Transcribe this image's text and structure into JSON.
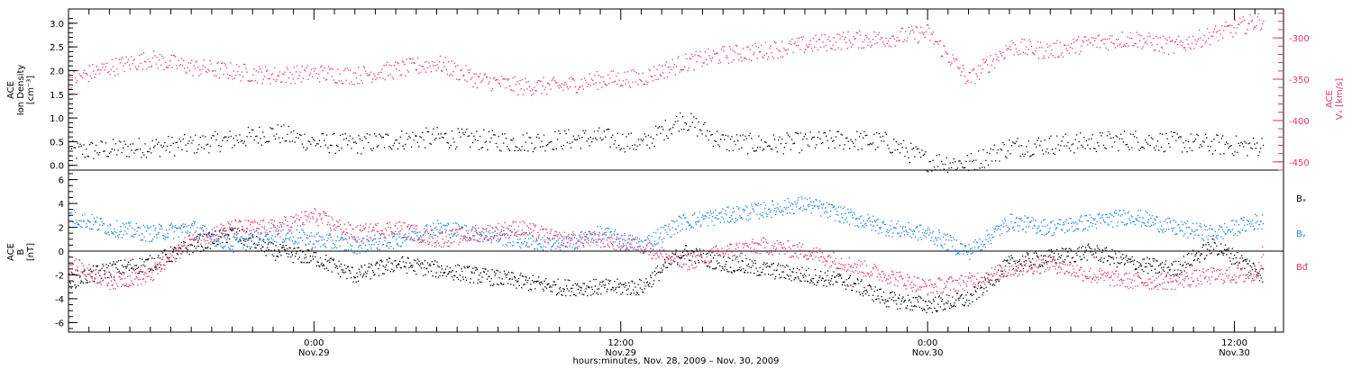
{
  "chart_data": [
    {
      "type": "scatter",
      "panel": "top",
      "ylabel_left": [
        "ACE",
        "Ion Density",
        "[cm⁻³]"
      ],
      "ylabel_right": "Vₓ [km/s]",
      "ylabel_right_title": "ACE",
      "ylim_left": [
        -0.1,
        3.3
      ],
      "yticks_left": [
        "0.0",
        "0.5",
        "1.0",
        "1.5",
        "2.0",
        "2.5",
        "3.0"
      ],
      "ylim_right": [
        -460,
        -265
      ],
      "yticks_right": [
        "-300",
        "-350",
        "-400",
        "-450"
      ],
      "x_hours": [
        0,
        59.4
      ],
      "series": [
        {
          "name": "",
          "axis": "left",
          "color": "#000000",
          "x": [
            0,
            2,
            4,
            6,
            8,
            10,
            12,
            14,
            16,
            18,
            20,
            22,
            24,
            26,
            28,
            30,
            32,
            34,
            36,
            38,
            40,
            42,
            44,
            46,
            48,
            50,
            52,
            54,
            56,
            58,
            58.4
          ],
          "y": [
            0.3,
            0.35,
            0.4,
            0.45,
            0.55,
            0.7,
            0.5,
            0.45,
            0.55,
            0.6,
            0.55,
            0.5,
            0.55,
            0.6,
            0.45,
            1.0,
            0.5,
            0.45,
            0.5,
            0.55,
            0.5,
            0.1,
            0.05,
            0.4,
            0.45,
            0.5,
            0.55,
            0.5,
            0.45,
            0.4,
            0.45
          ]
        },
        {
          "name": "",
          "axis": "right",
          "color": "#e0336b",
          "x": [
            0,
            2,
            4,
            6,
            8,
            10,
            12,
            14,
            16,
            18,
            20,
            22,
            24,
            26,
            28,
            30,
            32,
            34,
            36,
            38,
            40,
            42,
            44,
            46,
            48,
            50,
            52,
            54,
            56,
            58,
            58.4
          ],
          "y": [
            -350,
            -335,
            -325,
            -335,
            -340,
            -345,
            -342,
            -345,
            -338,
            -330,
            -350,
            -358,
            -358,
            -350,
            -348,
            -330,
            -320,
            -315,
            -308,
            -302,
            -300,
            -293,
            -350,
            -310,
            -315,
            -305,
            -300,
            -310,
            -295,
            -280,
            -278
          ]
        }
      ]
    },
    {
      "type": "scatter",
      "panel": "bottom",
      "ylabel": [
        "ACE",
        "B",
        "[nT]"
      ],
      "ylim": [
        -6.8,
        6.8
      ],
      "yticks": [
        "6",
        "4",
        "2",
        "0",
        "-2",
        "-4",
        "-6"
      ],
      "x_hours": [
        0,
        59.4
      ],
      "xticks": [
        {
          "hour": 12,
          "label": "0:00",
          "sublabel": "Nov.29"
        },
        {
          "hour": 27,
          "label": "12:00",
          "sublabel": "Nov.29"
        },
        {
          "hour": 42,
          "label": "0:00",
          "sublabel": "Nov.30"
        },
        {
          "hour": 57,
          "label": "12:00",
          "sublabel": "Nov.30"
        }
      ],
      "xlabel": "hours:minutes, Nov. 28, 2009 – Nov. 30, 2009",
      "series": [
        {
          "name": "Bₓ",
          "color": "#000000",
          "x": [
            0,
            2,
            4,
            6,
            8,
            10,
            12,
            14,
            16,
            18,
            20,
            22,
            24,
            26,
            28,
            30,
            32,
            34,
            36,
            38,
            40,
            42,
            44,
            46,
            48,
            50,
            52,
            54,
            56,
            58,
            58.4
          ],
          "y": [
            -2.5,
            -1.5,
            -1.0,
            0.5,
            1.5,
            0.0,
            -0.5,
            -2.0,
            -1.0,
            -1.5,
            -2.0,
            -2.5,
            -3.0,
            -3.0,
            -3.0,
            0.0,
            -1.0,
            -1.5,
            -2.0,
            -2.5,
            -4.0,
            -4.5,
            -4.0,
            -1.0,
            -0.5,
            0.0,
            -1.0,
            -1.5,
            0.5,
            -1.5,
            -2.0
          ]
        },
        {
          "name": "Bᵧ",
          "color": "#1a7fe0",
          "x": [
            0,
            2,
            4,
            6,
            8,
            10,
            12,
            14,
            16,
            18,
            20,
            22,
            24,
            26,
            28,
            30,
            32,
            34,
            36,
            38,
            40,
            42,
            44,
            46,
            48,
            50,
            52,
            54,
            56,
            58,
            58.4
          ],
          "y": [
            3.0,
            2.0,
            1.5,
            2.0,
            0.5,
            1.5,
            1.0,
            0.5,
            1.0,
            2.0,
            1.5,
            1.0,
            0.5,
            1.5,
            0.5,
            2.5,
            3.0,
            3.5,
            4.0,
            3.0,
            2.0,
            1.5,
            0.0,
            2.5,
            2.0,
            2.5,
            3.0,
            2.0,
            1.5,
            2.5,
            2.5
          ]
        },
        {
          "name": "Bᵭ",
          "color": "#e0336b",
          "x": [
            0,
            2,
            4,
            6,
            8,
            10,
            12,
            14,
            16,
            18,
            20,
            22,
            24,
            26,
            28,
            30,
            32,
            34,
            36,
            38,
            40,
            42,
            44,
            46,
            48,
            50,
            52,
            54,
            56,
            58,
            58.4
          ],
          "y": [
            -1.0,
            -2.5,
            -2.0,
            1.0,
            2.0,
            2.0,
            3.0,
            1.5,
            2.0,
            1.0,
            1.5,
            2.0,
            1.0,
            1.0,
            0.5,
            -1.0,
            0.0,
            0.5,
            0.0,
            -1.0,
            -2.0,
            -3.0,
            -2.5,
            -1.5,
            -1.0,
            -2.0,
            -2.5,
            -2.5,
            -2.0,
            -2.0,
            0.0
          ]
        }
      ]
    }
  ]
}
